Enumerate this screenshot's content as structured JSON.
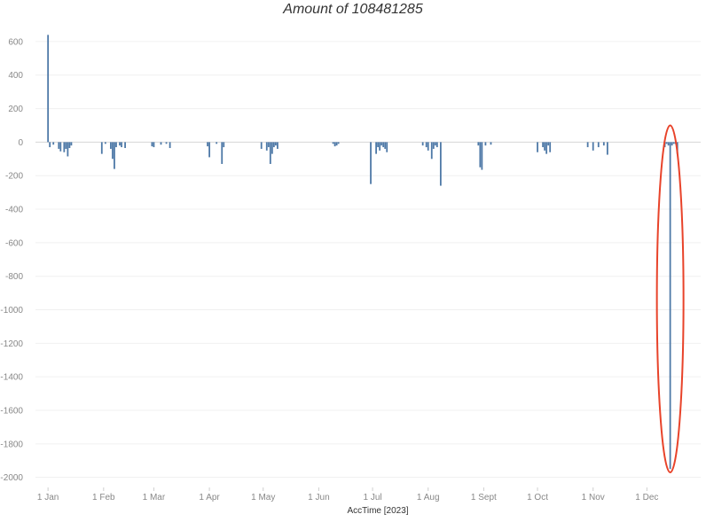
{
  "chart_data": {
    "type": "bar",
    "title": "Amount of 108481285",
    "xlabel": "AccTime [2023]",
    "ylabel": "",
    "ylim": [
      -2060,
      700
    ],
    "yticks": [
      600,
      400,
      200,
      0,
      -200,
      -400,
      -600,
      -800,
      -1000,
      -1200,
      -1400,
      -1600,
      -1800,
      -2000
    ],
    "xlim": [
      "2022-12-25",
      "2023-12-31"
    ],
    "xticks": [
      {
        "date": "2023-01-01",
        "label": "1 Jan"
      },
      {
        "date": "2023-02-01",
        "label": "1 Feb"
      },
      {
        "date": "2023-03-01",
        "label": "1 Mar"
      },
      {
        "date": "2023-04-01",
        "label": "1 Apr"
      },
      {
        "date": "2023-05-01",
        "label": "1 May"
      },
      {
        "date": "2023-06-01",
        "label": "1 Jun"
      },
      {
        "date": "2023-07-01",
        "label": "1 Jul"
      },
      {
        "date": "2023-08-01",
        "label": "1 Aug"
      },
      {
        "date": "2023-09-01",
        "label": "1 Sept"
      },
      {
        "date": "2023-10-01",
        "label": "1 Oct"
      },
      {
        "date": "2023-11-01",
        "label": "1 Nov"
      },
      {
        "date": "2023-12-01",
        "label": "1 Dec"
      }
    ],
    "grid": true,
    "bar_color": "#4e79a7",
    "highlight": {
      "shape": "ellipse",
      "color": "#e8432a",
      "date": "2023-12-14",
      "value_range": [
        100,
        -1970
      ]
    },
    "series": [
      {
        "points": [
          {
            "date": "2023-01-01",
            "value": 640
          },
          {
            "date": "2023-01-02",
            "value": -30
          },
          {
            "date": "2023-01-04",
            "value": -15
          },
          {
            "date": "2023-01-07",
            "value": -40
          },
          {
            "date": "2023-01-08",
            "value": -55
          },
          {
            "date": "2023-01-10",
            "value": -60
          },
          {
            "date": "2023-01-11",
            "value": -40
          },
          {
            "date": "2023-01-12",
            "value": -85
          },
          {
            "date": "2023-01-13",
            "value": -35
          },
          {
            "date": "2023-01-14",
            "value": -20
          },
          {
            "date": "2023-01-31",
            "value": -70
          },
          {
            "date": "2023-02-02",
            "value": -10
          },
          {
            "date": "2023-02-05",
            "value": -40
          },
          {
            "date": "2023-02-06",
            "value": -100
          },
          {
            "date": "2023-02-07",
            "value": -160
          },
          {
            "date": "2023-02-08",
            "value": -30
          },
          {
            "date": "2023-02-10",
            "value": -20
          },
          {
            "date": "2023-02-11",
            "value": -30
          },
          {
            "date": "2023-02-13",
            "value": -35
          },
          {
            "date": "2023-02-28",
            "value": -25
          },
          {
            "date": "2023-03-01",
            "value": -30
          },
          {
            "date": "2023-03-05",
            "value": -15
          },
          {
            "date": "2023-03-08",
            "value": -10
          },
          {
            "date": "2023-03-10",
            "value": -35
          },
          {
            "date": "2023-03-31",
            "value": -25
          },
          {
            "date": "2023-04-01",
            "value": -90
          },
          {
            "date": "2023-04-05",
            "value": -10
          },
          {
            "date": "2023-04-08",
            "value": -130
          },
          {
            "date": "2023-04-09",
            "value": -30
          },
          {
            "date": "2023-04-30",
            "value": -40
          },
          {
            "date": "2023-05-03",
            "value": -50
          },
          {
            "date": "2023-05-04",
            "value": -30
          },
          {
            "date": "2023-05-05",
            "value": -130
          },
          {
            "date": "2023-05-06",
            "value": -70
          },
          {
            "date": "2023-05-07",
            "value": -30
          },
          {
            "date": "2023-05-08",
            "value": -20
          },
          {
            "date": "2023-05-09",
            "value": -40
          },
          {
            "date": "2023-06-09",
            "value": -10
          },
          {
            "date": "2023-06-10",
            "value": -25
          },
          {
            "date": "2023-06-11",
            "value": -20
          },
          {
            "date": "2023-06-12",
            "value": -10
          },
          {
            "date": "2023-06-30",
            "value": -250
          },
          {
            "date": "2023-07-03",
            "value": -70
          },
          {
            "date": "2023-07-04",
            "value": -30
          },
          {
            "date": "2023-07-05",
            "value": -50
          },
          {
            "date": "2023-07-06",
            "value": -20
          },
          {
            "date": "2023-07-07",
            "value": -30
          },
          {
            "date": "2023-07-08",
            "value": -40
          },
          {
            "date": "2023-07-09",
            "value": -60
          },
          {
            "date": "2023-07-29",
            "value": -20
          },
          {
            "date": "2023-07-31",
            "value": -30
          },
          {
            "date": "2023-08-01",
            "value": -50
          },
          {
            "date": "2023-08-03",
            "value": -100
          },
          {
            "date": "2023-08-04",
            "value": -40
          },
          {
            "date": "2023-08-05",
            "value": -20
          },
          {
            "date": "2023-08-06",
            "value": -30
          },
          {
            "date": "2023-08-08",
            "value": -260
          },
          {
            "date": "2023-08-29",
            "value": -20
          },
          {
            "date": "2023-08-30",
            "value": -150
          },
          {
            "date": "2023-08-31",
            "value": -165
          },
          {
            "date": "2023-09-02",
            "value": -20
          },
          {
            "date": "2023-09-05",
            "value": -15
          },
          {
            "date": "2023-10-01",
            "value": -60
          },
          {
            "date": "2023-10-04",
            "value": -30
          },
          {
            "date": "2023-10-05",
            "value": -50
          },
          {
            "date": "2023-10-06",
            "value": -70
          },
          {
            "date": "2023-10-07",
            "value": -20
          },
          {
            "date": "2023-10-08",
            "value": -60
          },
          {
            "date": "2023-10-29",
            "value": -30
          },
          {
            "date": "2023-11-01",
            "value": -50
          },
          {
            "date": "2023-11-04",
            "value": -30
          },
          {
            "date": "2023-11-07",
            "value": -20
          },
          {
            "date": "2023-11-09",
            "value": -75
          },
          {
            "date": "2023-12-11",
            "value": -30
          },
          {
            "date": "2023-12-12",
            "value": -10
          },
          {
            "date": "2023-12-13",
            "value": -20
          },
          {
            "date": "2023-12-14",
            "value": -1950
          },
          {
            "date": "2023-12-15",
            "value": -20
          },
          {
            "date": "2023-12-16",
            "value": -10
          },
          {
            "date": "2023-12-17",
            "value": -10
          },
          {
            "date": "2023-12-18",
            "value": -70
          }
        ]
      }
    ]
  }
}
